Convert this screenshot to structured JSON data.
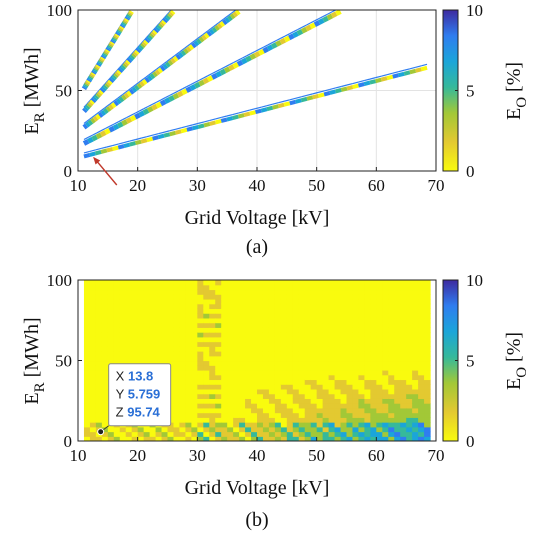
{
  "colors": {
    "colormap": [
      "#f9fb0e",
      "#e3c931",
      "#a2c837",
      "#36b99a",
      "#1ba5d9",
      "#2f7df0",
      "#3e2a9f"
    ],
    "arrow": "#c0392b",
    "datatip_value": "#2a6fd6"
  },
  "chart_data": [
    {
      "panel": "(a)",
      "type": "heatmap",
      "xlabel": "Grid Voltage [kV]",
      "ylabel_main": "E",
      "ylabel_sub": "R",
      "ylabel_unit": " [MWh]",
      "xlim": [
        10,
        70
      ],
      "ylim": [
        0,
        100
      ],
      "xticks": [
        10,
        20,
        30,
        40,
        50,
        60,
        70
      ],
      "yticks": [
        0,
        50,
        100
      ],
      "grid": true,
      "colorbar": {
        "label_main": "E",
        "label_sub": "O",
        "label_unit": " [%]",
        "range": [
          0,
          10
        ],
        "ticks": [
          0,
          5,
          10
        ]
      },
      "bands": [
        {
          "x_start": 11,
          "y_start": 10,
          "x_end": 68.5,
          "y_end": 65,
          "width": 4
        },
        {
          "x_start": 11,
          "y_start": 18,
          "x_end": 54,
          "y_end": 100,
          "width": 5
        },
        {
          "x_start": 11,
          "y_start": 28,
          "x_end": 37,
          "y_end": 100,
          "width": 5
        },
        {
          "x_start": 11,
          "y_start": 38,
          "x_end": 26,
          "y_end": 100,
          "width": 5
        },
        {
          "x_start": 11,
          "y_start": 52,
          "x_end": 19,
          "y_end": 100,
          "width": 5
        }
      ],
      "annotation_arrow_tip": [
        12.2,
        10
      ],
      "annotation_arrow_tail": [
        16.5,
        0
      ]
    },
    {
      "panel": "(b)",
      "type": "heatmap",
      "xlabel": "Grid Voltage [kV]",
      "ylabel_main": "E",
      "ylabel_sub": "R",
      "ylabel_unit": " [MWh]",
      "xlim": [
        10,
        70
      ],
      "ylim": [
        0,
        100
      ],
      "xticks": [
        10,
        20,
        30,
        40,
        50,
        60,
        70
      ],
      "yticks": [
        0,
        50,
        100
      ],
      "grid": false,
      "colorbar": {
        "label_main": "E",
        "label_sub": "O",
        "label_unit": " [%]",
        "range": [
          0,
          10
        ],
        "ticks": [
          0,
          5,
          10
        ]
      },
      "data_region": {
        "x_min": 11,
        "x_max": 69,
        "y_min": 0,
        "y_max": 100
      },
      "datatip": {
        "x_label": "X",
        "x_value": "13.8",
        "y_label": "Y",
        "y_value": "5.759",
        "z_label": "Z",
        "z_value": "95.74",
        "point": [
          13.8,
          5.759
        ]
      }
    }
  ]
}
